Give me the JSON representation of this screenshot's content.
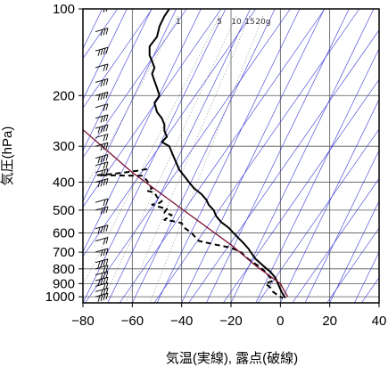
{
  "chart_data": {
    "type": "line",
    "xlabel": "気温(実線), 露点(破線)",
    "ylabel": "気圧(hPa)",
    "x_range": [
      -80,
      40
    ],
    "y_range": [
      100,
      1050
    ],
    "y_scale": "log",
    "x_ticks": [
      -80,
      -60,
      -40,
      -20,
      0,
      20,
      40
    ],
    "y_ticks": [
      100,
      200,
      300,
      400,
      500,
      600,
      700,
      800,
      900,
      1000
    ],
    "mixing_ratio_labels": [
      "1",
      "5",
      "10",
      "15",
      "20g"
    ],
    "colors": {
      "temperature": "#000000",
      "dewpoint": "#000000",
      "parcel": "#7a1030",
      "isotherm": "#3b3bd6",
      "dry_adiabat": "#3b3bd6",
      "grid": "#555555"
    },
    "series": [
      {
        "name": "気温",
        "style": "solid",
        "points": [
          [
            -45,
            100
          ],
          [
            -47,
            106
          ],
          [
            -49,
            115
          ],
          [
            -50,
            125
          ],
          [
            -53,
            135
          ],
          [
            -53,
            145
          ],
          [
            -52,
            152
          ],
          [
            -51,
            160
          ],
          [
            -52,
            168
          ],
          [
            -51,
            178
          ],
          [
            -50,
            188
          ],
          [
            -49,
            200
          ],
          [
            -51,
            212
          ],
          [
            -50,
            228
          ],
          [
            -48,
            240
          ],
          [
            -47,
            252
          ],
          [
            -47,
            265
          ],
          [
            -46,
            278
          ],
          [
            -48,
            290
          ],
          [
            -45,
            300
          ],
          [
            -44,
            315
          ],
          [
            -43,
            330
          ],
          [
            -42,
            345
          ],
          [
            -41,
            362
          ],
          [
            -39,
            380
          ],
          [
            -37,
            400
          ],
          [
            -35,
            420
          ],
          [
            -32,
            440
          ],
          [
            -30,
            460
          ],
          [
            -29,
            480
          ],
          [
            -27,
            500
          ],
          [
            -26,
            525
          ],
          [
            -24,
            550
          ],
          [
            -21,
            575
          ],
          [
            -19,
            600
          ],
          [
            -17,
            625
          ],
          [
            -15,
            650
          ],
          [
            -13,
            680
          ],
          [
            -12,
            700
          ],
          [
            -10,
            740
          ],
          [
            -7,
            780
          ],
          [
            -4,
            820
          ],
          [
            -2,
            860
          ],
          [
            -1,
            900
          ],
          [
            0,
            940
          ],
          [
            1,
            980
          ],
          [
            2,
            1010
          ]
        ]
      },
      {
        "name": "露点",
        "style": "dashed",
        "points": [
          [
            -54,
            360
          ],
          [
            -58,
            365
          ],
          [
            -63,
            370
          ],
          [
            -69,
            375
          ],
          [
            -74,
            378
          ],
          [
            -56,
            380
          ],
          [
            -54,
            395
          ],
          [
            -53,
            410
          ],
          [
            -52,
            420
          ],
          [
            -54,
            428
          ],
          [
            -51,
            435
          ],
          [
            -50,
            450
          ],
          [
            -48,
            465
          ],
          [
            -49,
            472
          ],
          [
            -52,
            478
          ],
          [
            -50,
            485
          ],
          [
            -46,
            495
          ],
          [
            -47,
            510
          ],
          [
            -44,
            520
          ],
          [
            -47,
            540
          ],
          [
            -44,
            545
          ],
          [
            -40,
            555
          ],
          [
            -39,
            575
          ],
          [
            -36,
            600
          ],
          [
            -33,
            640
          ],
          [
            -26,
            660
          ],
          [
            -20,
            675
          ],
          [
            -16,
            700
          ],
          [
            -13,
            740
          ],
          [
            -9,
            780
          ],
          [
            -6,
            820
          ],
          [
            -4,
            860
          ],
          [
            -3,
            880
          ],
          [
            -6,
            900
          ],
          [
            -4,
            930
          ],
          [
            -3,
            960
          ],
          [
            -1,
            990
          ],
          [
            1,
            1010
          ]
        ]
      },
      {
        "name": "parcel",
        "style": "solid-thin",
        "points": [
          [
            -80,
            263
          ],
          [
            -60,
            370
          ],
          [
            -40,
            495
          ],
          [
            -20,
            660
          ],
          [
            -10,
            780
          ],
          [
            0,
            900
          ],
          [
            3,
            1000
          ]
        ]
      }
    ]
  }
}
